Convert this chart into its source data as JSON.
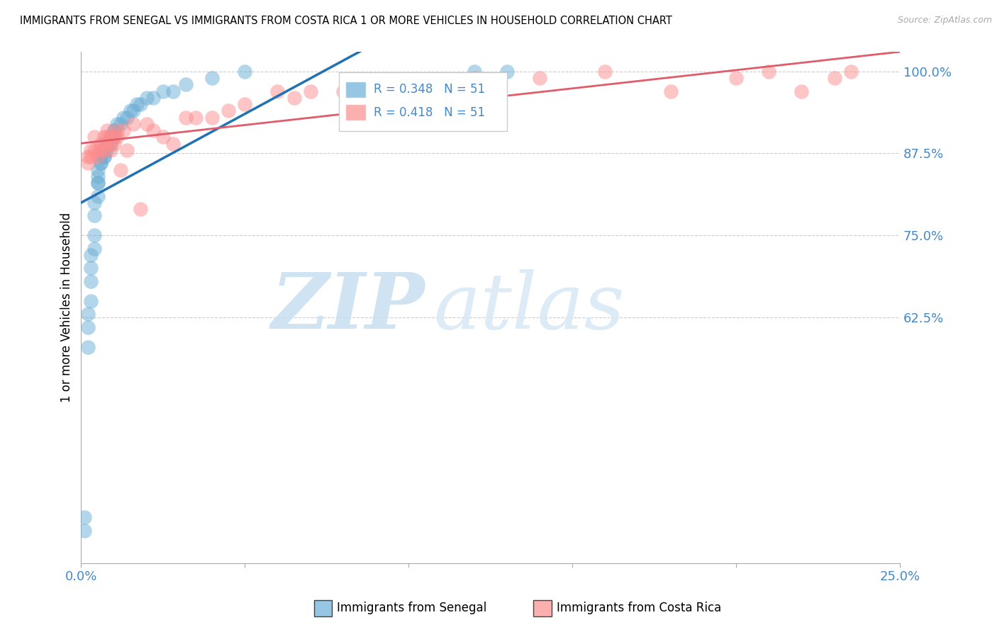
{
  "title": "IMMIGRANTS FROM SENEGAL VS IMMIGRANTS FROM COSTA RICA 1 OR MORE VEHICLES IN HOUSEHOLD CORRELATION CHART",
  "source": "Source: ZipAtlas.com",
  "ylabel": "1 or more Vehicles in Household",
  "xlim": [
    0.0,
    0.25
  ],
  "ylim": [
    0.25,
    1.03
  ],
  "yticks": [
    1.0,
    0.875,
    0.75,
    0.625
  ],
  "ytick_labels": [
    "100.0%",
    "87.5%",
    "75.0%",
    "62.5%"
  ],
  "xticks": [
    0.0,
    0.05,
    0.1,
    0.15,
    0.2,
    0.25
  ],
  "xtick_labels": [
    "0.0%",
    "",
    "",
    "",
    "",
    "25.0%"
  ],
  "senegal_color": "#6baed6",
  "costarica_color": "#fc8d8d",
  "senegal_line_color": "#2171b5",
  "costarica_line_color": "#e05c6b",
  "senegal_R": 0.348,
  "senegal_N": 51,
  "costarica_R": 0.418,
  "costarica_N": 51,
  "watermark_zip": "ZIP",
  "watermark_atlas": "atlas",
  "background_color": "#ffffff",
  "grid_color": "#cccccc",
  "legend_x_label": "Immigrants from Senegal",
  "legend_cr_label": "Immigrants from Costa Rica",
  "senegal_x": [
    0.001,
    0.001,
    0.002,
    0.002,
    0.002,
    0.003,
    0.003,
    0.003,
    0.003,
    0.004,
    0.004,
    0.004,
    0.004,
    0.005,
    0.005,
    0.005,
    0.005,
    0.005,
    0.006,
    0.006,
    0.006,
    0.007,
    0.007,
    0.007,
    0.007,
    0.008,
    0.008,
    0.008,
    0.009,
    0.009,
    0.009,
    0.01,
    0.01,
    0.01,
    0.011,
    0.012,
    0.013,
    0.014,
    0.015,
    0.016,
    0.017,
    0.018,
    0.02,
    0.022,
    0.025,
    0.028,
    0.032,
    0.04,
    0.05,
    0.12,
    0.13
  ],
  "senegal_y": [
    0.3,
    0.32,
    0.58,
    0.61,
    0.63,
    0.65,
    0.68,
    0.7,
    0.72,
    0.73,
    0.75,
    0.78,
    0.8,
    0.81,
    0.83,
    0.83,
    0.84,
    0.85,
    0.86,
    0.86,
    0.87,
    0.87,
    0.87,
    0.88,
    0.88,
    0.88,
    0.89,
    0.89,
    0.89,
    0.9,
    0.9,
    0.9,
    0.91,
    0.91,
    0.92,
    0.92,
    0.93,
    0.93,
    0.94,
    0.94,
    0.95,
    0.95,
    0.96,
    0.96,
    0.97,
    0.97,
    0.98,
    0.99,
    1.0,
    1.0,
    1.0
  ],
  "costarica_x": [
    0.002,
    0.002,
    0.003,
    0.003,
    0.004,
    0.004,
    0.005,
    0.005,
    0.006,
    0.006,
    0.007,
    0.007,
    0.007,
    0.008,
    0.008,
    0.009,
    0.009,
    0.009,
    0.01,
    0.01,
    0.011,
    0.011,
    0.012,
    0.013,
    0.014,
    0.016,
    0.018,
    0.02,
    0.022,
    0.025,
    0.028,
    0.032,
    0.035,
    0.04,
    0.045,
    0.05,
    0.06,
    0.065,
    0.07,
    0.08,
    0.09,
    0.1,
    0.12,
    0.14,
    0.16,
    0.18,
    0.2,
    0.21,
    0.22,
    0.23,
    0.235
  ],
  "costarica_y": [
    0.86,
    0.87,
    0.87,
    0.88,
    0.88,
    0.9,
    0.88,
    0.87,
    0.89,
    0.88,
    0.9,
    0.89,
    0.88,
    0.91,
    0.9,
    0.9,
    0.89,
    0.88,
    0.9,
    0.89,
    0.91,
    0.9,
    0.85,
    0.91,
    0.88,
    0.92,
    0.79,
    0.92,
    0.91,
    0.9,
    0.89,
    0.93,
    0.93,
    0.93,
    0.94,
    0.95,
    0.97,
    0.96,
    0.97,
    0.97,
    0.97,
    0.98,
    0.99,
    0.99,
    1.0,
    0.97,
    0.99,
    1.0,
    0.97,
    0.99,
    1.0
  ]
}
